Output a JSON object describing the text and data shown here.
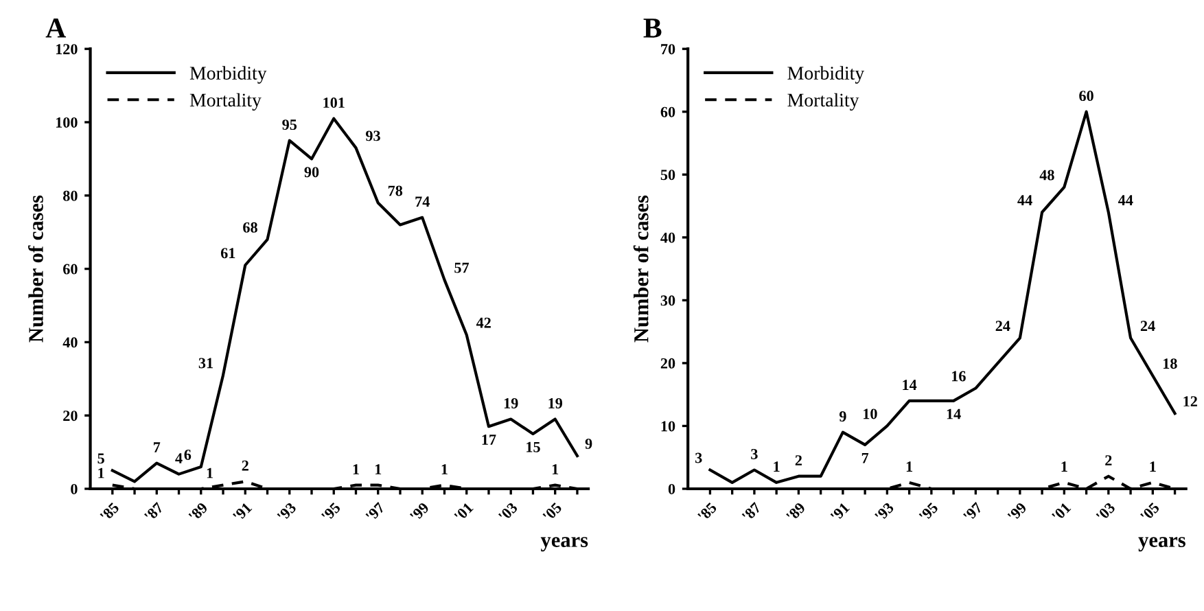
{
  "chart_data": [
    {
      "type": "line",
      "title": "A",
      "xlabel": "years",
      "ylabel": "Number of cases",
      "categories": [
        "'85",
        null,
        "'87",
        null,
        "'89",
        null,
        "'91",
        null,
        "'93",
        null,
        "'95",
        null,
        "'97",
        null,
        "'99",
        null,
        "'01",
        null,
        "'03",
        null,
        "'05",
        null
      ],
      "series": [
        {
          "name": "Morbidity",
          "color": "#000000",
          "line_style": "solid",
          "values": [
            5,
            2,
            7,
            4,
            6,
            31,
            61,
            68,
            95,
            90,
            101,
            93,
            78,
            72,
            74,
            57,
            42,
            17,
            19,
            15,
            19,
            9
          ],
          "value_labels": [
            "5",
            null,
            "7",
            "4",
            "6",
            "31",
            "61",
            "68",
            "95",
            "90",
            "101",
            "93",
            "78",
            null,
            "74",
            "57",
            "42",
            "17",
            "19",
            "15",
            "19",
            "9"
          ]
        },
        {
          "name": "Mortality",
          "color": "#000000",
          "line_style": "dashed",
          "values": [
            1,
            0,
            0,
            0,
            0,
            1,
            2,
            0,
            0,
            0,
            0,
            1,
            1,
            0,
            0,
            1,
            0,
            0,
            0,
            0,
            1,
            0
          ],
          "value_labels": [
            "1",
            null,
            null,
            null,
            null,
            "1",
            "2",
            null,
            null,
            null,
            null,
            "1",
            "1",
            null,
            null,
            "1",
            null,
            null,
            null,
            null,
            "1",
            null
          ]
        }
      ],
      "ylim": [
        0,
        120
      ],
      "yticks": [
        0,
        20,
        40,
        60,
        80,
        100,
        120
      ],
      "legend": "top left",
      "grid": false,
      "marker": "none"
    },
    {
      "type": "line",
      "title": "B",
      "xlabel": "years",
      "ylabel": "Number of cases",
      "categories": [
        "'85",
        null,
        "'87",
        null,
        "'89",
        null,
        "'91",
        null,
        "'93",
        null,
        "'95",
        null,
        "'97",
        null,
        "'99",
        null,
        "'01",
        null,
        "'03",
        null,
        "'05",
        null
      ],
      "series": [
        {
          "name": "Morbidity",
          "color": "#000000",
          "line_style": "solid",
          "values": [
            3,
            1,
            3,
            1,
            2,
            2,
            9,
            7,
            10,
            14,
            14,
            14,
            16,
            20,
            24,
            44,
            48,
            60,
            44,
            24,
            18,
            12
          ],
          "value_labels": [
            "3",
            null,
            "3",
            "1",
            "2",
            null,
            "9",
            "7",
            "10",
            "14",
            null,
            "14",
            "16",
            null,
            "24",
            "44",
            "48",
            "60",
            "44",
            "24",
            "18",
            "12"
          ]
        },
        {
          "name": "Mortality",
          "color": "#000000",
          "line_style": "dashed",
          "values": [
            0,
            0,
            0,
            0,
            0,
            0,
            0,
            0,
            0,
            1,
            0,
            0,
            0,
            0,
            0,
            0,
            1,
            0,
            2,
            0,
            1,
            0
          ],
          "value_labels": [
            null,
            null,
            null,
            null,
            null,
            null,
            null,
            null,
            null,
            "1",
            null,
            null,
            null,
            null,
            null,
            null,
            "1",
            null,
            "2",
            null,
            "1",
            null
          ]
        }
      ],
      "ylim": [
        0,
        70
      ],
      "yticks": [
        0,
        10,
        20,
        30,
        40,
        50,
        60,
        70
      ],
      "legend": "top left",
      "grid": false,
      "marker": "none"
    }
  ]
}
